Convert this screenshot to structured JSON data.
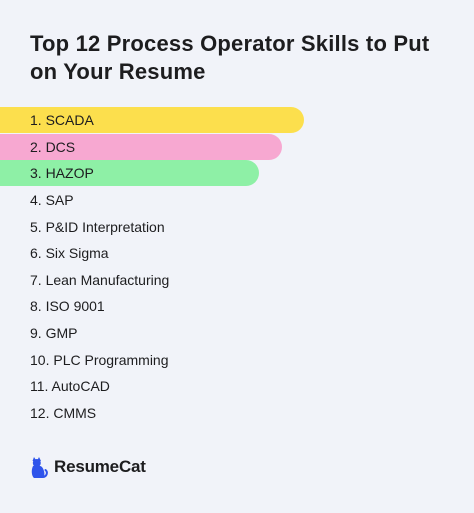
{
  "title": "Top 12 Process Operator Skills to Put on Your Resume",
  "skills": [
    {
      "label": "1. SCADA",
      "highlight": "#fcdf4d"
    },
    {
      "label": "2. DCS",
      "highlight": "#f7a8d1"
    },
    {
      "label": "3. HAZOP",
      "highlight": "#8ef0a6"
    },
    {
      "label": "4. SAP"
    },
    {
      "label": "5. P&ID Interpretation"
    },
    {
      "label": "6. Six Sigma"
    },
    {
      "label": "7. Lean Manufacturing"
    },
    {
      "label": "8. ISO 9001"
    },
    {
      "label": "9. GMP"
    },
    {
      "label": "10. PLC Programming"
    },
    {
      "label": "11. AutoCAD"
    },
    {
      "label": "12. CMMS"
    }
  ],
  "brand": {
    "name": "ResumeCat",
    "icon": "cat-icon",
    "color": "#2f54eb"
  },
  "colors": {
    "background": "#f1f3f9",
    "text": "#1d1d1f"
  }
}
